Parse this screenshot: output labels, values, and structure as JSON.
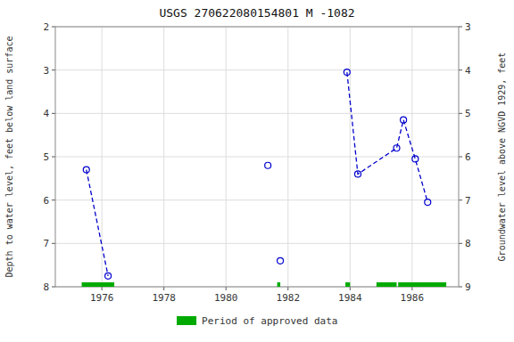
{
  "chart_data": {
    "type": "line",
    "title": "USGS 270622080154801 M  -1082",
    "y_label": "Depth to water level, feet below land surface",
    "y2_label": "Groundwater level above NGVD 1929, feet",
    "xlim": [
      1974.5,
      1987.5
    ],
    "xticks": [
      1976,
      1978,
      1980,
      1982,
      1984,
      1986
    ],
    "ylim": [
      8.0,
      2.0
    ],
    "yticks": [
      2.0,
      3.0,
      4.0,
      5.0,
      6.0,
      7.0,
      8.0
    ],
    "y2lim": [
      9.0,
      3.0
    ],
    "y2ticks": [
      9.0,
      8.0,
      7.0,
      6.0,
      5.0,
      4.0,
      3.0
    ],
    "grid": true,
    "legend": "bottom",
    "series": [
      {
        "x": [
          1975.5,
          1976.2
        ],
        "values": [
          5.3,
          7.75
        ],
        "color": "#0000cc",
        "line_style": "dashed",
        "marker": "circle"
      },
      {
        "x": [
          1981.35
        ],
        "values": [
          5.2
        ],
        "color": "#0000cc",
        "line_style": "dashed",
        "marker": "circle"
      },
      {
        "x": [
          1981.75
        ],
        "values": [
          7.4
        ],
        "color": "#0000cc",
        "line_style": "dashed",
        "marker": "circle"
      },
      {
        "x": [
          1983.9,
          1984.25,
          1985.5,
          1985.72,
          1986.1,
          1986.5
        ],
        "values": [
          3.05,
          5.4,
          4.8,
          4.15,
          5.05,
          6.05
        ],
        "color": "#0000cc",
        "line_style": "dashed",
        "marker": "circle"
      },
      {
        "name": "Period of approved data",
        "type": "range",
        "color": "#00aa00",
        "x_start": [
          1975.35,
          1981.65,
          1983.85,
          1984.85,
          1985.55
        ],
        "x_end": [
          1976.4,
          1981.75,
          1984.0,
          1985.5,
          1987.1
        ]
      }
    ]
  }
}
